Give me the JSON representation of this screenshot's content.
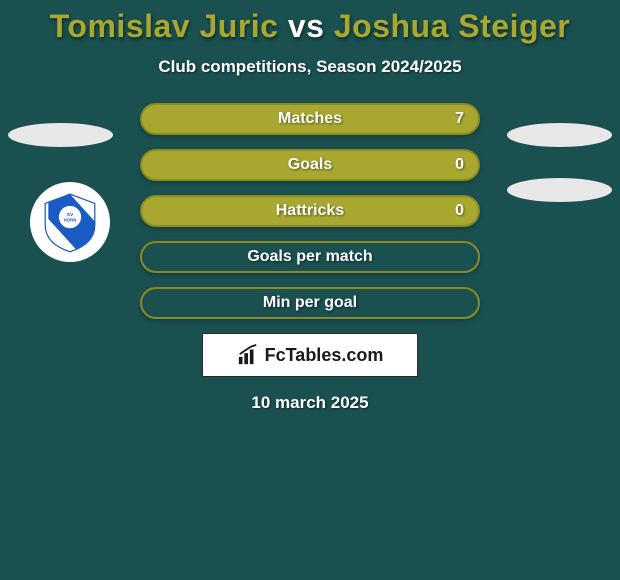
{
  "title": {
    "prefix": "Tomislav Juric",
    "connector": " vs ",
    "suffix": "Joshua Steiger",
    "prefix_color": "#a8a830",
    "connector_color": "#ffffff",
    "suffix_color": "#a8a830"
  },
  "subtitle": "Club competitions, Season 2024/2025",
  "stats": {
    "bar_fill": "#a8a830",
    "bar_border": "#8a8a20",
    "empty_fill": "transparent",
    "rows": [
      {
        "label": "Matches",
        "value": "7",
        "fill_pct": 100
      },
      {
        "label": "Goals",
        "value": "0",
        "fill_pct": 100
      },
      {
        "label": "Hattricks",
        "value": "0",
        "fill_pct": 100
      },
      {
        "label": "Goals per match",
        "value": "",
        "fill_pct": 0
      },
      {
        "label": "Min per goal",
        "value": "",
        "fill_pct": 0
      }
    ]
  },
  "watermark": "FcTables.com",
  "date": "10 march 2025",
  "side_shape_color": "#e8e8e8",
  "badge": {
    "bg": "#ffffff",
    "stripe": "#1a5cc4",
    "text": "SV HORN"
  }
}
